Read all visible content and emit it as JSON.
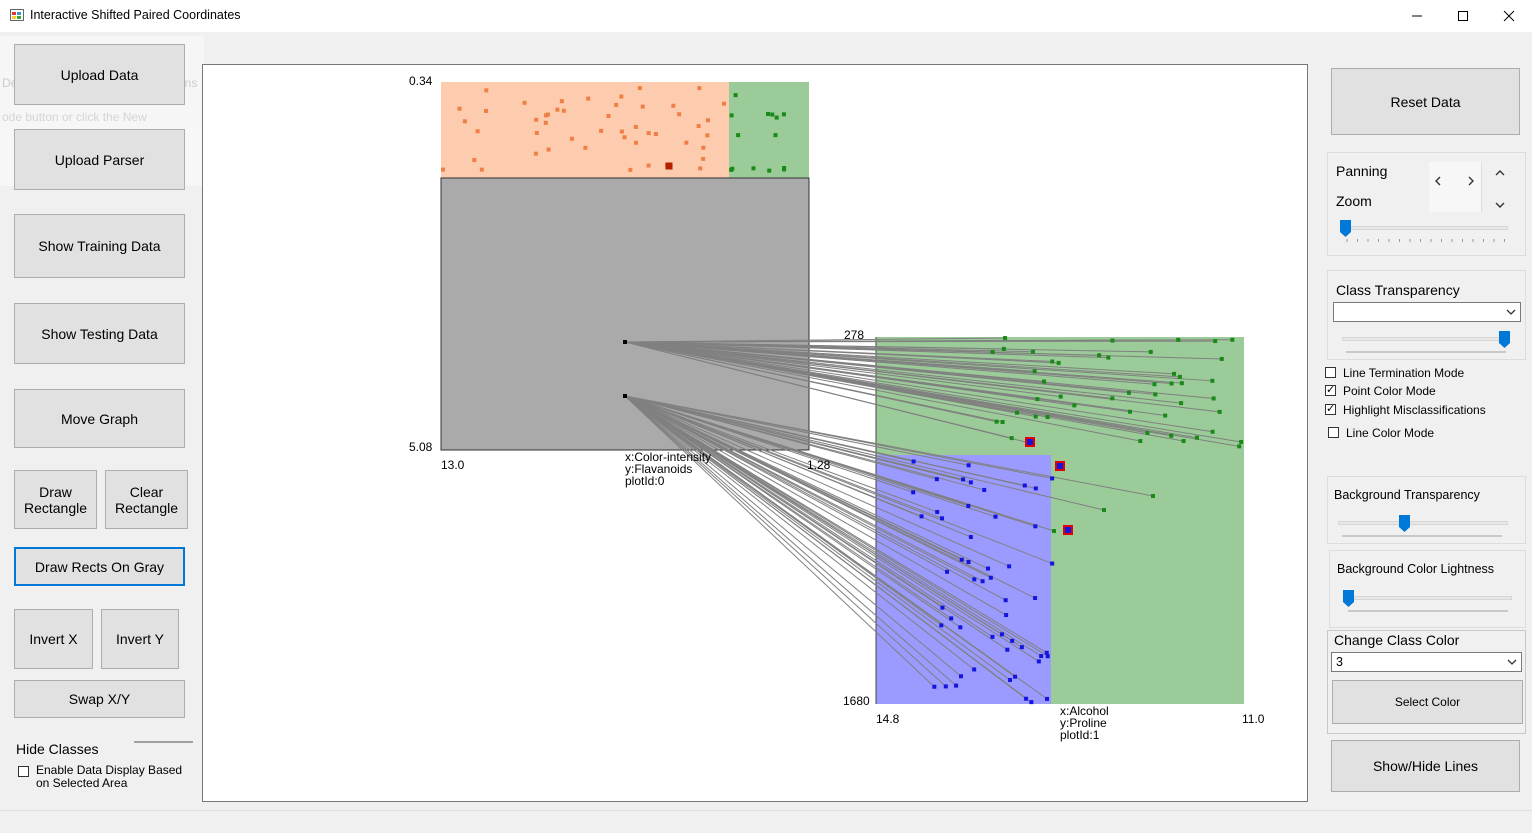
{
  "window": {
    "title": "Interactive Shifted Paired Coordinates"
  },
  "left_panel": {
    "upload_data": "Upload Data",
    "upload_parser": "Upload Parser",
    "show_training": "Show Training Data",
    "show_testing": "Show Testing Data",
    "move_graph": "Move Graph",
    "draw_rect": "Draw Rectangle",
    "clear_rect": "Clear Rectangle",
    "draw_rects_gray": "Draw Rects On Gray",
    "invert_x": "Invert X",
    "invert_y": "Invert Y",
    "swap_xy": "Swap X/Y",
    "hide_classes": "Hide Classes",
    "enable_display": "Enable Data Display Based on Selected Area"
  },
  "ghost_toolbar": {
    "delay": "Delay",
    "options": "Options",
    "hint": "ode button or click the New"
  },
  "plot0": {
    "ymax": "0.34",
    "ymin": "5.08",
    "xmin": "13.0",
    "xmax": "1.28",
    "label_x": "x:Color-intensity",
    "label_y": "y:Flavanoids",
    "label_id": "plotId:0"
  },
  "plot1": {
    "ymax": "278",
    "ymin": "1680",
    "xmin": "14.8",
    "xmax": "11.0",
    "label_x": "x:Alcohol",
    "label_y": "y:Proline",
    "label_id": "plotId:1"
  },
  "right_panel": {
    "reset_data": "Reset Data",
    "panning": "Panning",
    "zoom": "Zoom",
    "class_transparency": "Class Transparency",
    "line_termination": "Line Termination Mode",
    "point_color": "Point Color Mode",
    "highlight_misclass": "Highlight Misclassifications",
    "line_color": "Line Color Mode",
    "bg_transparency": "Background Transparency",
    "bg_lightness": "Background Color Lightness",
    "change_class_color": "Change Class Color",
    "class_selected": "3",
    "select_color": "Select Color",
    "show_hide_lines": "Show/Hide Lines"
  },
  "checkboxes": {
    "line_termination": false,
    "point_color": true,
    "highlight_misclass": true,
    "line_color": false,
    "enable_display": false
  },
  "sliders": {
    "zoom": 0.0,
    "class_transparency": 1.0,
    "bg_transparency": 0.4,
    "bg_lightness": 0.0
  },
  "colors": {
    "class1": "#ff9966",
    "class2": "#339933",
    "class3": "#3333ff",
    "gray_region": "#aaaaaa",
    "orange_region": "#fdcbae",
    "green_region": "#9bcb98",
    "blue_region": "#9a9aff",
    "line": "#808080",
    "misclass": "#e60000",
    "accent": "#0078d7"
  }
}
